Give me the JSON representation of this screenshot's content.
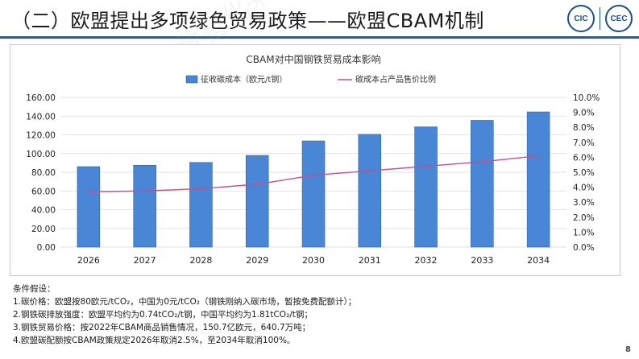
{
  "slide": {
    "title": "（二）欧盟提出多项绿色贸易政策——欧盟CBAM机制",
    "page_number": "8",
    "logo_left": "CIC",
    "logo_right": "CEC",
    "watermark": "统筹国有企业数智化采购与供应链"
  },
  "colors": {
    "bar_fill": "#4a86d6",
    "bar_stroke": "#2f5fa5",
    "line": "#c0508e",
    "title_rule": "#1f5fa8"
  },
  "chart_data": {
    "type": "bar",
    "title": "CBAM对中国钢铁贸易成本影响",
    "categories": [
      "2026",
      "2027",
      "2028",
      "2029",
      "2030",
      "2031",
      "2032",
      "2033",
      "2034"
    ],
    "series": [
      {
        "name": "征收碳成本（欧元/t钢）",
        "type": "bar",
        "axis": "left",
        "values": [
          86,
          87.5,
          90.5,
          98,
          113.5,
          120.5,
          128.5,
          135.5,
          144.5
        ]
      },
      {
        "name": "碳成本占产品售价比例",
        "type": "line",
        "axis": "right",
        "values": [
          3.7,
          3.75,
          3.9,
          4.2,
          4.8,
          5.1,
          5.4,
          5.7,
          6.1
        ]
      }
    ],
    "ylim": [
      0,
      160
    ],
    "y_ticks": [
      "0.00",
      "20.00",
      "40.00",
      "60.00",
      "80.00",
      "100.00",
      "120.00",
      "140.00",
      "160.00"
    ],
    "y2lim": [
      0,
      10
    ],
    "y2_ticks": [
      "0.0%",
      "1.0%",
      "2.0%",
      "3.0%",
      "4.0%",
      "5.0%",
      "6.0%",
      "7.0%",
      "8.0%",
      "9.0%",
      "10.0%"
    ],
    "grid": true,
    "legend": "top"
  },
  "notes": {
    "heading": "条件假设：",
    "lines": [
      "1.碳价格：欧盟按80欧元/tCO₂，中国为0元/tCO₂（钢铁刚纳入碳市场，暂按免费配额计）；",
      "2.钢铁碳排放强度：欧盟平均约为0.74tCO₂/t钢，中国平均约为1.81tCO₂/t钢；",
      "3.钢铁贸易价格：按2022年CBAM商品销售情况，150.7亿欧元，640.7万吨；",
      "4.欧盟碳配额按CBAM政策规定2026年取消2.5%，至2034年取消100%。"
    ]
  }
}
